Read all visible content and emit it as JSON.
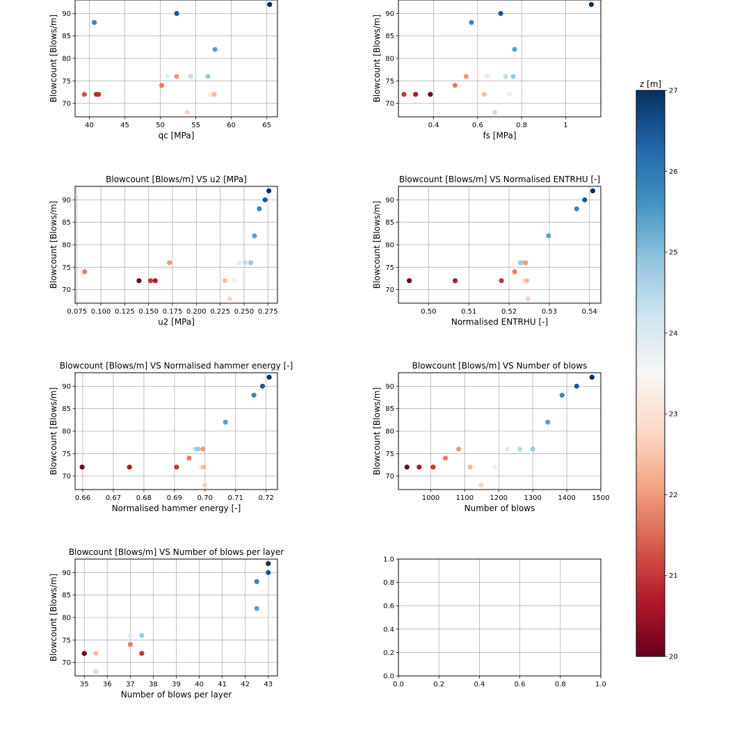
{
  "colorbar": {
    "label": "z [m]",
    "min": 20,
    "max": 27,
    "ticks": [
      20,
      21,
      22,
      23,
      24,
      25,
      26,
      27
    ],
    "colormap": "RdBu",
    "colors": [
      "#67001f",
      "#b2182b",
      "#d6604d",
      "#f4a582",
      "#fddbc7",
      "#f7f7f7",
      "#d1e5f0",
      "#92c5de",
      "#4393c3",
      "#2166ac",
      "#053061"
    ]
  },
  "chart_data": [
    {
      "type": "scatter",
      "title": "",
      "xlabel": "qc [MPa]",
      "ylabel": "Blowcount [Blows/m]",
      "xlim": [
        38,
        66.5
      ],
      "ylim": [
        67,
        93
      ],
      "xticks": [
        40,
        45,
        50,
        55,
        60,
        65
      ],
      "yticks": [
        70,
        75,
        80,
        85,
        90
      ],
      "grid": true,
      "points": [
        {
          "x": 39.3,
          "y": 72,
          "z": 21.3
        },
        {
          "x": 40.7,
          "y": 88,
          "z": 25.8
        },
        {
          "x": 41.0,
          "y": 72,
          "z": 20.8
        },
        {
          "x": 41.3,
          "y": 72,
          "z": 20.9
        },
        {
          "x": 50.2,
          "y": 74,
          "z": 21.7
        },
        {
          "x": 51.0,
          "y": 76,
          "z": 23.9
        },
        {
          "x": 52.3,
          "y": 76,
          "z": 22.0
        },
        {
          "x": 52.3,
          "y": 90,
          "z": 26.5
        },
        {
          "x": 53.8,
          "y": 68,
          "z": 22.7
        },
        {
          "x": 54.3,
          "y": 76,
          "z": 24.4
        },
        {
          "x": 56.7,
          "y": 76,
          "z": 24.8
        },
        {
          "x": 57.0,
          "y": 72,
          "z": 23.2
        },
        {
          "x": 57.6,
          "y": 72,
          "z": 22.4
        },
        {
          "x": 57.7,
          "y": 82,
          "z": 25.4
        },
        {
          "x": 65.4,
          "y": 92,
          "z": 27.0
        }
      ]
    },
    {
      "type": "scatter",
      "title": "",
      "xlabel": "fs [MPa]",
      "ylabel": "Blowcount [Blows/m]",
      "xlim": [
        0.24,
        1.16
      ],
      "ylim": [
        67,
        93
      ],
      "xticks": [
        0.4,
        0.6,
        0.8,
        1.0
      ],
      "yticks": [
        70,
        75,
        80,
        85,
        90
      ],
      "grid": true,
      "points": [
        {
          "x": 0.265,
          "y": 72,
          "z": 21.0
        },
        {
          "x": 0.318,
          "y": 72,
          "z": 20.7
        },
        {
          "x": 0.385,
          "y": 72,
          "z": 20.1
        },
        {
          "x": 0.497,
          "y": 74,
          "z": 21.7
        },
        {
          "x": 0.548,
          "y": 76,
          "z": 22.0
        },
        {
          "x": 0.572,
          "y": 88,
          "z": 25.8
        },
        {
          "x": 0.63,
          "y": 72,
          "z": 22.4
        },
        {
          "x": 0.643,
          "y": 76,
          "z": 23.9
        },
        {
          "x": 0.678,
          "y": 68,
          "z": 22.7
        },
        {
          "x": 0.705,
          "y": 90,
          "z": 26.5
        },
        {
          "x": 0.728,
          "y": 76,
          "z": 24.4
        },
        {
          "x": 0.745,
          "y": 72,
          "z": 23.2
        },
        {
          "x": 0.762,
          "y": 76,
          "z": 24.8
        },
        {
          "x": 0.768,
          "y": 82,
          "z": 25.4
        },
        {
          "x": 1.117,
          "y": 92,
          "z": 27.0
        }
      ]
    },
    {
      "type": "scatter",
      "title": "Blowcount [Blows/m] VS u2 [MPa]",
      "xlabel": "u2 [MPa]",
      "ylabel": "Blowcount [Blows/m]",
      "xlim": [
        0.073,
        0.285
      ],
      "ylim": [
        67,
        93
      ],
      "xticks": [
        0.075,
        0.1,
        0.125,
        0.15,
        0.175,
        0.2,
        0.225,
        0.25,
        0.275
      ],
      "xticklabels": [
        "0.075",
        "0.100",
        "0.125",
        "0.150",
        "0.175",
        "0.200",
        "0.225",
        "0.250",
        "0.275"
      ],
      "yticks": [
        70,
        75,
        80,
        85,
        90
      ],
      "grid": true,
      "points": [
        {
          "x": 0.083,
          "y": 74,
          "z": 21.7
        },
        {
          "x": 0.14,
          "y": 72,
          "z": 20.1
        },
        {
          "x": 0.152,
          "y": 72,
          "z": 21.0
        },
        {
          "x": 0.157,
          "y": 72,
          "z": 20.7
        },
        {
          "x": 0.172,
          "y": 76,
          "z": 22.0
        },
        {
          "x": 0.23,
          "y": 72,
          "z": 22.4
        },
        {
          "x": 0.235,
          "y": 68,
          "z": 22.7
        },
        {
          "x": 0.24,
          "y": 72,
          "z": 23.2
        },
        {
          "x": 0.245,
          "y": 76,
          "z": 23.9
        },
        {
          "x": 0.251,
          "y": 76,
          "z": 24.4
        },
        {
          "x": 0.257,
          "y": 76,
          "z": 24.8
        },
        {
          "x": 0.261,
          "y": 82,
          "z": 25.4
        },
        {
          "x": 0.266,
          "y": 88,
          "z": 25.8
        },
        {
          "x": 0.272,
          "y": 90,
          "z": 26.5
        },
        {
          "x": 0.276,
          "y": 92,
          "z": 27.0
        }
      ]
    },
    {
      "type": "scatter",
      "title": "Blowcount [Blows/m] VS Normalised ENTRHU [-]",
      "xlabel": "Normalised ENTRHU [-]",
      "ylabel": "Blowcount [Blows/m]",
      "xlim": [
        0.4925,
        0.5428
      ],
      "ylim": [
        67,
        93
      ],
      "xticks": [
        0.5,
        0.51,
        0.52,
        0.53,
        0.54
      ],
      "xticklabels": [
        "0.50",
        "0.51",
        "0.52",
        "0.53",
        "0.54"
      ],
      "yticks": [
        70,
        75,
        80,
        85,
        90
      ],
      "grid": true,
      "points": [
        {
          "x": 0.4952,
          "y": 72,
          "z": 20.1
        },
        {
          "x": 0.5066,
          "y": 72,
          "z": 20.7
        },
        {
          "x": 0.5181,
          "y": 72,
          "z": 21.0
        },
        {
          "x": 0.5214,
          "y": 74,
          "z": 21.7
        },
        {
          "x": 0.5226,
          "y": 76,
          "z": 23.9
        },
        {
          "x": 0.5232,
          "y": 76,
          "z": 24.4
        },
        {
          "x": 0.5235,
          "y": 72,
          "z": 23.2
        },
        {
          "x": 0.5241,
          "y": 76,
          "z": 22.0
        },
        {
          "x": 0.5244,
          "y": 72,
          "z": 22.4
        },
        {
          "x": 0.5247,
          "y": 68,
          "z": 22.7
        },
        {
          "x": 0.5298,
          "y": 82,
          "z": 25.4
        },
        {
          "x": 0.5368,
          "y": 88,
          "z": 25.8
        },
        {
          "x": 0.5388,
          "y": 90,
          "z": 26.5
        },
        {
          "x": 0.5408,
          "y": 92,
          "z": 27.0
        },
        {
          "x": 0.5229,
          "y": 76,
          "z": 24.8
        }
      ]
    },
    {
      "type": "scatter",
      "title": "Blowcount [Blows/m] VS Normalised hammer energy [-]",
      "xlabel": "Normalised hammer energy [-]",
      "ylabel": "Blowcount [Blows/m]",
      "xlim": [
        0.6575,
        0.7237
      ],
      "ylim": [
        67,
        93
      ],
      "xticks": [
        0.66,
        0.67,
        0.68,
        0.69,
        0.7,
        0.71,
        0.72
      ],
      "xticklabels": [
        "0.66",
        "0.67",
        "0.68",
        "0.69",
        "0.70",
        "0.71",
        "0.72"
      ],
      "yticks": [
        70,
        75,
        80,
        85,
        90
      ],
      "grid": true,
      "points": [
        {
          "x": 0.6598,
          "y": 72,
          "z": 20.1
        },
        {
          "x": 0.6753,
          "y": 72,
          "z": 20.7
        },
        {
          "x": 0.6907,
          "y": 72,
          "z": 21.0
        },
        {
          "x": 0.6948,
          "y": 74,
          "z": 21.7
        },
        {
          "x": 0.6968,
          "y": 76,
          "z": 24.4
        },
        {
          "x": 0.6977,
          "y": 76,
          "z": 24.8
        },
        {
          "x": 0.6985,
          "y": 72,
          "z": 23.2
        },
        {
          "x": 0.6993,
          "y": 76,
          "z": 22.0
        },
        {
          "x": 0.6996,
          "y": 72,
          "z": 22.4
        },
        {
          "x": 0.6999,
          "y": 68,
          "z": 22.7
        },
        {
          "x": 0.7067,
          "y": 82,
          "z": 25.4
        },
        {
          "x": 0.716,
          "y": 88,
          "z": 25.8
        },
        {
          "x": 0.7188,
          "y": 90,
          "z": 26.5
        },
        {
          "x": 0.721,
          "y": 92,
          "z": 27.0
        }
      ]
    },
    {
      "type": "scatter",
      "title": "Blowcount [Blows/m] VS Number of blows",
      "xlabel": "Number of blows",
      "ylabel": "Blowcount [Blows/m]",
      "xlim": [
        905,
        1500
      ],
      "ylim": [
        67,
        93
      ],
      "xticks": [
        1000,
        1100,
        1200,
        1300,
        1400,
        1500
      ],
      "yticks": [
        70,
        75,
        80,
        85,
        90
      ],
      "grid": true,
      "points": [
        {
          "x": 930,
          "y": 72,
          "z": 20.1
        },
        {
          "x": 966,
          "y": 72,
          "z": 20.7
        },
        {
          "x": 1007,
          "y": 72,
          "z": 21.0
        },
        {
          "x": 1043,
          "y": 74,
          "z": 21.7
        },
        {
          "x": 1082,
          "y": 76,
          "z": 22.0
        },
        {
          "x": 1116,
          "y": 72,
          "z": 22.4
        },
        {
          "x": 1148,
          "y": 68,
          "z": 22.7
        },
        {
          "x": 1188,
          "y": 72,
          "z": 23.2
        },
        {
          "x": 1225,
          "y": 76,
          "z": 23.9
        },
        {
          "x": 1262,
          "y": 76,
          "z": 24.4
        },
        {
          "x": 1300,
          "y": 76,
          "z": 24.8
        },
        {
          "x": 1344,
          "y": 82,
          "z": 25.4
        },
        {
          "x": 1386,
          "y": 88,
          "z": 25.8
        },
        {
          "x": 1429,
          "y": 90,
          "z": 26.5
        },
        {
          "x": 1474,
          "y": 92,
          "z": 27.0
        }
      ]
    },
    {
      "type": "scatter",
      "title": "Blowcount [Blows/m] VS Number of blows per layer",
      "xlabel": "Number of blows per layer",
      "ylabel": "Blowcount [Blows/m]",
      "xlim": [
        34.6,
        43.4
      ],
      "ylim": [
        67,
        93
      ],
      "xticks": [
        35,
        36,
        37,
        38,
        39,
        40,
        41,
        42,
        43
      ],
      "yticks": [
        70,
        75,
        80,
        85,
        90
      ],
      "grid": true,
      "points": [
        {
          "x": 35.0,
          "y": 72,
          "z": 20.1
        },
        {
          "x": 35.5,
          "y": 72,
          "z": 22.4
        },
        {
          "x": 35.5,
          "y": 68,
          "z": 22.7
        },
        {
          "x": 37.0,
          "y": 74,
          "z": 21.7
        },
        {
          "x": 37.0,
          "y": 76,
          "z": 23.9
        },
        {
          "x": 37.5,
          "y": 72,
          "z": 21.0
        },
        {
          "x": 37.5,
          "y": 76,
          "z": 24.8
        },
        {
          "x": 42.5,
          "y": 82,
          "z": 25.4
        },
        {
          "x": 42.5,
          "y": 88,
          "z": 25.8
        },
        {
          "x": 43.0,
          "y": 90,
          "z": 26.5
        },
        {
          "x": 43.0,
          "y": 92,
          "z": 27.0
        }
      ]
    },
    {
      "type": "scatter",
      "title": "",
      "xlabel": "",
      "ylabel": "",
      "xlim": [
        0,
        1
      ],
      "ylim": [
        0,
        1
      ],
      "xticks": [
        0.0,
        0.2,
        0.4,
        0.6,
        0.8,
        1.0
      ],
      "xticklabels": [
        "0.0",
        "0.2",
        "0.4",
        "0.6",
        "0.8",
        "1.0"
      ],
      "yticks": [
        0.0,
        0.2,
        0.4,
        0.6,
        0.8,
        1.0
      ],
      "yticklabels": [
        "0.0",
        "0.2",
        "0.4",
        "0.6",
        "0.8",
        "1.0"
      ],
      "grid": true,
      "points": []
    }
  ]
}
